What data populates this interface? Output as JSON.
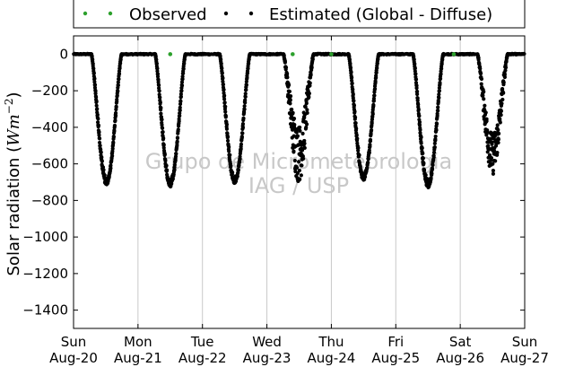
{
  "chart_data": {
    "type": "scatter",
    "ylabel_prefix": "Solar radiation (",
    "ylabel_math": "Wm",
    "ylabel_sup": "−2",
    "ylabel_suffix": ")",
    "ylim": [
      -1500,
      100
    ],
    "yticks": [
      0,
      -200,
      -400,
      -600,
      -800,
      -1000,
      -1200,
      -1400
    ],
    "xlim_days": [
      0,
      7
    ],
    "x_tick_labels": [
      {
        "day": "Sun",
        "date": "Aug-20"
      },
      {
        "day": "Mon",
        "date": "Aug-21"
      },
      {
        "day": "Tue",
        "date": "Aug-22"
      },
      {
        "day": "Wed",
        "date": "Aug-23"
      },
      {
        "day": "Thu",
        "date": "Aug-24"
      },
      {
        "day": "Fri",
        "date": "Aug-25"
      },
      {
        "day": "Sat",
        "date": "Aug-26"
      },
      {
        "day": "Sun",
        "date": "Aug-27"
      }
    ],
    "grid": "vertical",
    "legend_placement": "top-center, outside plot",
    "series": [
      {
        "name": "Observed",
        "color": "#2ca02c",
        "marker": "dot",
        "points": [
          [
            4.0,
            0
          ],
          [
            3.4,
            0
          ],
          [
            1.5,
            0
          ],
          [
            5.9,
            0
          ]
        ]
      },
      {
        "name": "Estimated (Global - Diffuse)",
        "color": "#000000",
        "marker": "dot",
        "note_values": "daily diurnal cycles; nighttime ≈ 0",
        "daily_minima": [
          {
            "date": "Aug-20",
            "center_day": 0.51,
            "min": -715
          },
          {
            "date": "Aug-21",
            "center_day": 1.5,
            "min": -725
          },
          {
            "date": "Aug-22",
            "center_day": 2.5,
            "min": -710
          },
          {
            "date": "Aug-23",
            "center_day": 3.49,
            "min": -700
          },
          {
            "date": "Aug-24",
            "center_day": 4.5,
            "min": -690
          },
          {
            "date": "Aug-25",
            "center_day": 5.5,
            "min": -730
          },
          {
            "date": "Aug-26",
            "center_day": 6.5,
            "min": -660
          }
        ]
      }
    ],
    "watermark": [
      "Grupo de Micrometeorologia",
      "IAG / USP"
    ]
  }
}
